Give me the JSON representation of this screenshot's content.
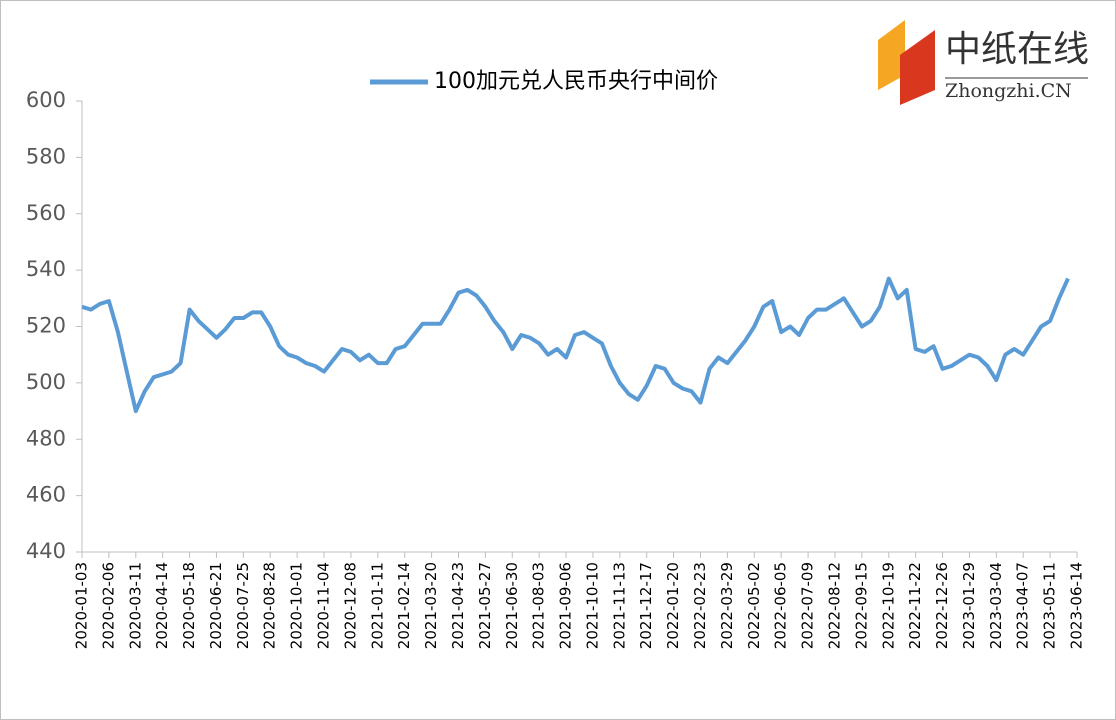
{
  "logo": {
    "name": "中纸在线",
    "site": "Zhongzhi.CN"
  },
  "chart_data": {
    "type": "line",
    "categories": [
      "2020-01-03",
      null,
      null,
      "2020-02-06",
      null,
      null,
      "2020-03-11",
      null,
      null,
      "2020-04-14",
      null,
      null,
      "2020-05-18",
      null,
      null,
      "2020-06-21",
      null,
      null,
      "2020-07-25",
      null,
      null,
      "2020-08-28",
      null,
      null,
      "2020-10-01",
      null,
      null,
      "2020-11-04",
      null,
      null,
      "2020-12-08",
      null,
      null,
      "2021-01-11",
      null,
      null,
      "2021-02-14",
      null,
      null,
      "2021-03-20",
      null,
      null,
      "2021-04-23",
      null,
      null,
      "2021-05-27",
      null,
      null,
      "2021-06-30",
      null,
      null,
      "2021-08-03",
      null,
      null,
      "2021-09-06",
      null,
      null,
      "2021-10-10",
      null,
      null,
      "2021-11-13",
      null,
      null,
      "2021-12-17",
      null,
      null,
      "2022-01-20",
      null,
      null,
      "2022-02-23",
      null,
      null,
      "2022-03-29",
      null,
      null,
      "2022-05-02",
      null,
      null,
      "2022-06-05",
      null,
      null,
      "2022-07-09",
      null,
      null,
      "2022-08-12",
      null,
      null,
      "2022-09-15",
      null,
      null,
      "2022-10-19",
      null,
      null,
      "2022-11-22",
      null,
      null,
      "2022-12-26",
      null,
      null,
      "2023-01-29",
      null,
      null,
      "2023-03-04",
      null,
      null,
      "2023-04-07",
      null,
      null,
      "2023-05-11",
      null,
      null,
      "2023-06-14"
    ],
    "series": [
      {
        "name": "100加元兑人民币央行中间价",
        "color": "#5b9bd5",
        "values": [
          527,
          526,
          528,
          529,
          518,
          504,
          490,
          497,
          502,
          503,
          504,
          507,
          526,
          522,
          519,
          516,
          519,
          523,
          523,
          525,
          525,
          520,
          513,
          510,
          509,
          507,
          506,
          504,
          508,
          512,
          511,
          508,
          510,
          507,
          507,
          512,
          513,
          517,
          521,
          521,
          521,
          526,
          532,
          533,
          531,
          527,
          522,
          518,
          512,
          517,
          516,
          514,
          510,
          512,
          509,
          517,
          518,
          516,
          514,
          506,
          500,
          496,
          494,
          499,
          506,
          505,
          500,
          498,
          497,
          493,
          505,
          509,
          507,
          511,
          515,
          520,
          527,
          529,
          518,
          520,
          517,
          523,
          526,
          526,
          528,
          530,
          525,
          520,
          522,
          527,
          537,
          530,
          533,
          512,
          511,
          513,
          505,
          506,
          508,
          510,
          509,
          506,
          501,
          510,
          512,
          510,
          515,
          520,
          522,
          530,
          537,
          null
        ]
      }
    ],
    "ylim": [
      440,
      600
    ],
    "yticks": [
      440,
      460,
      480,
      500,
      520,
      540,
      560,
      580,
      600
    ],
    "legend": "top"
  }
}
